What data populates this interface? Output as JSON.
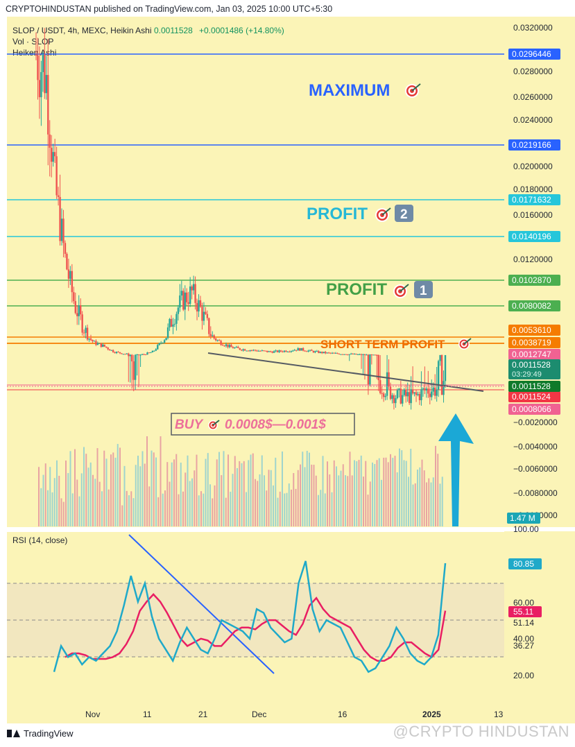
{
  "header": {
    "publisher_line": "CRYPTOHINDUSTAN published on TradingView.com, Jan 03, 2025 10:00 UTC+5:30"
  },
  "legend": {
    "symbol_line": "SLOP / USDT, 4h, MEXC, Heikin Ashi",
    "last_value": "0.0011528",
    "change": "+0.0001486 (+14.80%)",
    "vol_line": "Vol · SLOP",
    "heiken_line": "Heiken Ashi"
  },
  "annotations": {
    "maximum": "MAXIMUM",
    "profit2": "PROFIT",
    "profit2_num": "2",
    "profit1": "PROFIT",
    "profit1_num": "1",
    "short_term": "SHORT TERM PROFIT",
    "buy": "BUY",
    "buy_range": "0.0008$—0.001$",
    "target_icon": "target-dart-icon"
  },
  "rsi_title": "RSI (14, close)",
  "footer": {
    "brand": "TradingView",
    "watermark": "@CRYPTO HINDUSTAN"
  },
  "colors": {
    "background": "#fbf4b7",
    "blue_line": "#2962ff",
    "cyan_line": "#26c6da",
    "green_line": "#4caf50",
    "orange_line": "#f57c00",
    "candle_up": "#26a69a",
    "candle_down": "#ef5350",
    "rsi_line": "#1fa9c9",
    "rsi_ma": "#e91e63",
    "arrow": "#1ba8d6"
  },
  "chart_data": {
    "type": "candlestick",
    "symbol": "SLOP / USDT",
    "price_axis_ticks": [
      "0.0320000",
      "0.0280000",
      "0.0260000",
      "0.0240000",
      "0.0200000",
      "0.0180000",
      "0.0160000",
      "0.0120000",
      "−0.0020000",
      "−0.0040000",
      "−0.0060000",
      "−0.0080000",
      "−0.0100000"
    ],
    "time_axis_ticks": [
      "Nov",
      "11",
      "21",
      "Dec",
      "16",
      "2025",
      "13"
    ],
    "levels": [
      {
        "value": 0.0296446,
        "label": "0.0296446",
        "color": "#2962ff"
      },
      {
        "value": 0.0219166,
        "label": "0.0219166",
        "color": "#2962ff"
      },
      {
        "value": 0.0171632,
        "label": "0.0171632",
        "color": "#26c6da"
      },
      {
        "value": 0.0140196,
        "label": "0.0140196",
        "color": "#26c6da"
      },
      {
        "value": 0.010287,
        "label": "0.0102870",
        "color": "#4caf50"
      },
      {
        "value": 0.0080082,
        "label": "0.0080082",
        "color": "#4caf50"
      },
      {
        "value": 0.005361,
        "label": "0.0053610",
        "color": "#f57c00"
      },
      {
        "value": 0.0038719,
        "label": "0.0038719",
        "color": "#f57c00"
      },
      {
        "value": 0.0012747,
        "label": "0.0012747",
        "color": "#f06292"
      },
      {
        "value": 0.0011524,
        "label": "0.0011524",
        "color": "#f23645"
      },
      {
        "value": 0.0008066,
        "label": "0.0008066",
        "color": "#f06292"
      }
    ],
    "current_price": {
      "value": 0.0011528,
      "label": "0.0011528",
      "countdown": "03:29:49"
    },
    "volume_label": "1.47 M",
    "close_profile": [
      0.0296,
      0.028,
      0.018,
      0.012,
      0.008,
      0.006,
      0.004,
      0.0032,
      0.002,
      0.0016,
      0.0012,
      0.0014,
      0.002,
      0.0045,
      0.007,
      0.0085,
      0.0092,
      0.0075,
      0.0055,
      0.004,
      0.003,
      0.0026,
      0.0024,
      0.0022,
      0.002,
      0.0021,
      0.0023,
      0.0026,
      0.0022,
      0.0019,
      0.0017,
      0.0016,
      0.0015,
      0.0014,
      0.0013,
      0.0012,
      0.0011,
      0.001,
      0.001,
      0.001,
      0.0011,
      0.0011,
      0.0012
    ],
    "rsi": {
      "period": 14,
      "axis_ticks": [
        "100.00",
        "60.00",
        "40.00",
        "20.00"
      ],
      "last_rsi": "80.85",
      "last_ma": "55.11",
      "band_upper": "51.14",
      "band_lower": "36.27",
      "rsi_values": [
        22,
        36,
        30,
        32,
        26,
        30,
        28,
        32,
        36,
        44,
        58,
        74,
        60,
        70,
        52,
        40,
        34,
        28,
        38,
        46,
        40,
        34,
        32,
        40,
        50,
        48,
        46,
        44,
        40,
        56,
        54,
        46,
        42,
        38,
        40,
        70,
        82,
        56,
        44,
        50,
        48,
        46,
        38,
        30,
        28,
        22,
        24,
        30,
        36,
        46,
        40,
        32,
        28,
        26,
        30,
        42,
        80.85
      ],
      "ma_values": [
        30,
        32,
        32,
        31,
        29,
        29,
        29,
        30,
        32,
        37,
        44,
        55,
        60,
        64,
        60,
        54,
        47,
        40,
        36,
        38,
        40,
        39,
        36,
        36,
        40,
        44,
        46,
        46,
        45,
        48,
        50,
        50,
        47,
        44,
        42,
        48,
        58,
        62,
        56,
        52,
        50,
        48,
        46,
        40,
        34,
        30,
        28,
        28,
        30,
        35,
        38,
        38,
        35,
        32,
        30,
        34,
        55.11
      ]
    }
  }
}
